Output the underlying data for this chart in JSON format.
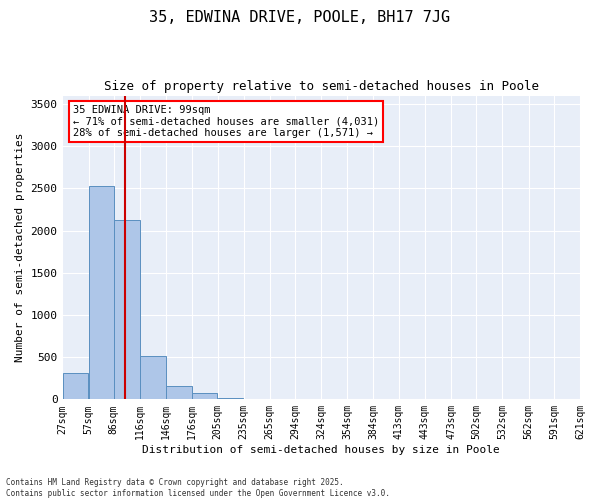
{
  "title": "35, EDWINA DRIVE, POOLE, BH17 7JG",
  "subtitle": "Size of property relative to semi-detached houses in Poole",
  "xlabel": "Distribution of semi-detached houses by size in Poole",
  "ylabel": "Number of semi-detached properties",
  "bar_color": "#aec6e8",
  "bar_edge_color": "#5a8fc0",
  "bg_color": "#e8eef8",
  "annotation_line1": "35 EDWINA DRIVE: 99sqm",
  "annotation_line2": "← 71% of semi-detached houses are smaller (4,031)",
  "annotation_line3": "28% of semi-detached houses are larger (1,571) →",
  "property_line_x": 99,
  "property_line_color": "#cc0000",
  "bin_edges": [
    27,
    57,
    86,
    116,
    146,
    176,
    205,
    235,
    265,
    294,
    324,
    354,
    384,
    413,
    443,
    473,
    502,
    532,
    562,
    591,
    621
  ],
  "bin_counts": [
    310,
    2530,
    2120,
    510,
    155,
    80,
    15,
    0,
    0,
    0,
    0,
    0,
    0,
    0,
    0,
    0,
    0,
    0,
    0,
    0
  ],
  "ylim": [
    0,
    3600
  ],
  "yticks": [
    0,
    500,
    1000,
    1500,
    2000,
    2500,
    3000,
    3500
  ],
  "footer_text": "Contains HM Land Registry data © Crown copyright and database right 2025.\nContains public sector information licensed under the Open Government Licence v3.0.",
  "title_fontsize": 11,
  "subtitle_fontsize": 9,
  "axis_label_fontsize": 8,
  "tick_label_fontsize": 7,
  "ytick_fontsize": 8,
  "annotation_fontsize": 7.5,
  "footer_fontsize": 5.5
}
